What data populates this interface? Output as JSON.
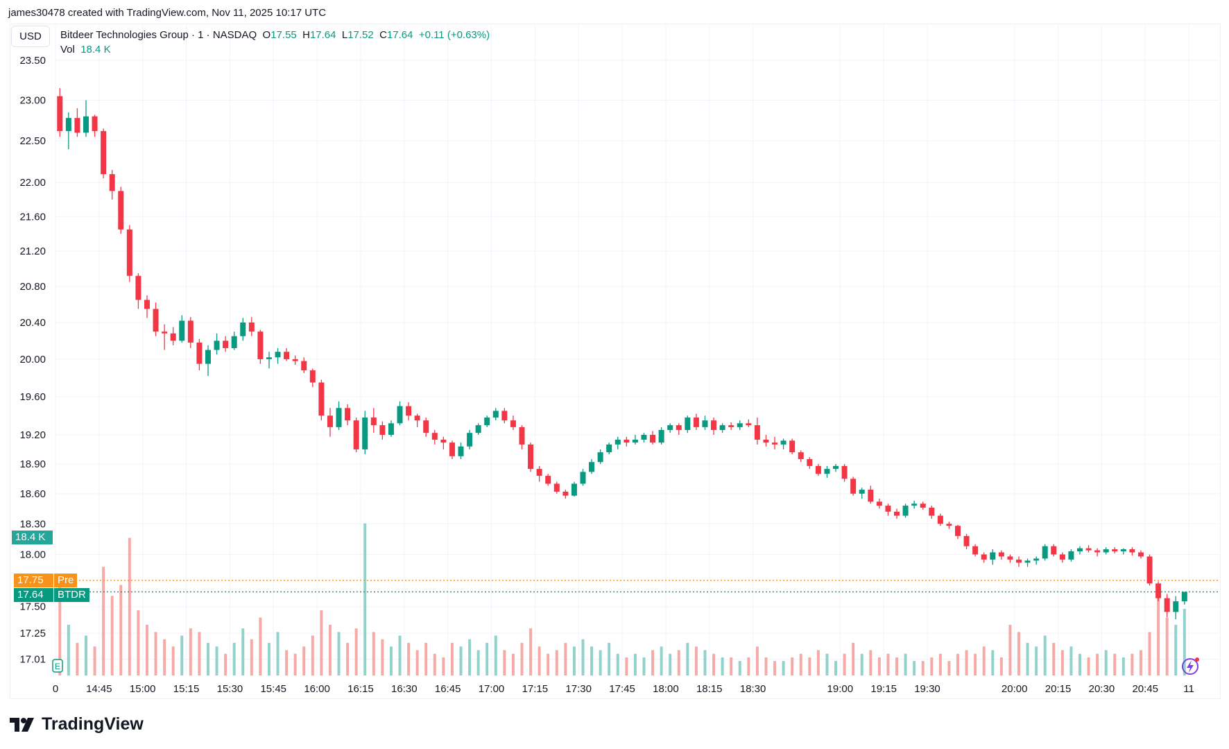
{
  "credit": "james30478 created with TradingView.com, Nov 11, 2025 10:17 UTC",
  "currency": "USD",
  "legend": {
    "symbol": "Bitdeer Technologies Group · 1 · NASDAQ",
    "o_label": "O",
    "o": "17.55",
    "h_label": "H",
    "h": "17.64",
    "l_label": "L",
    "l": "17.52",
    "c_label": "C",
    "c": "17.64",
    "change": "+0.11 (+0.63%)",
    "vol_label": "Vol",
    "vol": "18.4 K"
  },
  "tags": {
    "volume": "18.4 K",
    "pre_price": "17.75",
    "pre_label": "Pre",
    "last_price": "17.64",
    "last_label": "BTDR"
  },
  "colors": {
    "up": "#089981",
    "down": "#f23645",
    "vol_up": "#92d2cc",
    "vol_down": "#f7a9a7",
    "pre": "#f7931a",
    "grid": "#f0f3fa"
  },
  "brand": "TradingView",
  "icons": [
    "earnings-marker-icon",
    "lightning-icon",
    "tradingview-logo-icon"
  ],
  "chart_data": {
    "type": "candlestick",
    "y_scale": "log",
    "ylim": [
      17.01,
      23.5
    ],
    "grid": true,
    "y_ticks": [
      "23.50",
      "23.00",
      "22.50",
      "22.00",
      "21.60",
      "21.20",
      "20.80",
      "20.40",
      "20.00",
      "19.60",
      "19.20",
      "18.90",
      "18.60",
      "18.30",
      "18.00",
      "17.50",
      "17.25",
      "17.01"
    ],
    "x_ticks": [
      [
        "14:30",
        "0"
      ],
      [
        "14:45",
        "14:45"
      ],
      [
        "15:00",
        "15:00"
      ],
      [
        "15:15",
        "15:15"
      ],
      [
        "15:30",
        "15:30"
      ],
      [
        "15:45",
        "15:45"
      ],
      [
        "16:00",
        "16:00"
      ],
      [
        "16:15",
        "16:15"
      ],
      [
        "16:30",
        "16:30"
      ],
      [
        "16:45",
        "16:45"
      ],
      [
        "17:00",
        "17:00"
      ],
      [
        "17:15",
        "17:15"
      ],
      [
        "17:30",
        "17:30"
      ],
      [
        "17:45",
        "17:45"
      ],
      [
        "18:00",
        "18:00"
      ],
      [
        "18:15",
        "18:15"
      ],
      [
        "18:30",
        "18:30"
      ],
      [
        "19:00",
        "19:00"
      ],
      [
        "19:15",
        "19:15"
      ],
      [
        "19:30",
        "19:30"
      ],
      [
        "20:00",
        "20:00"
      ],
      [
        "20:15",
        "20:15"
      ],
      [
        "20:30",
        "20:30"
      ],
      [
        "20:45",
        "20:45"
      ],
      [
        "21:00",
        "11"
      ]
    ],
    "price_lines": [
      {
        "label": "Pre",
        "value": 17.75
      },
      {
        "label": "BTDR",
        "value": 17.64
      }
    ],
    "columns": [
      "time",
      "open",
      "high",
      "low",
      "close",
      "volume_k"
    ],
    "bars": [
      [
        "14:30",
        23.05,
        23.15,
        22.55,
        22.62,
        28
      ],
      [
        "14:33",
        22.62,
        22.85,
        22.4,
        22.78,
        14
      ],
      [
        "14:36",
        22.78,
        22.9,
        22.55,
        22.6,
        9
      ],
      [
        "14:39",
        22.6,
        23.0,
        22.55,
        22.8,
        11
      ],
      [
        "14:42",
        22.8,
        22.82,
        22.55,
        22.62,
        8
      ],
      [
        "14:45",
        22.62,
        22.65,
        22.05,
        22.1,
        30
      ],
      [
        "14:48",
        22.1,
        22.15,
        21.8,
        21.9,
        22
      ],
      [
        "14:51",
        21.9,
        21.95,
        21.4,
        21.45,
        25
      ],
      [
        "14:54",
        21.45,
        21.5,
        20.85,
        20.92,
        38
      ],
      [
        "14:57",
        20.92,
        20.95,
        20.55,
        20.65,
        18
      ],
      [
        "15:00",
        20.65,
        20.7,
        20.45,
        20.55,
        14
      ],
      [
        "15:03",
        20.55,
        20.62,
        20.25,
        20.3,
        12
      ],
      [
        "15:06",
        20.3,
        20.38,
        20.1,
        20.28,
        10
      ],
      [
        "15:09",
        20.28,
        20.35,
        20.15,
        20.2,
        8
      ],
      [
        "15:12",
        20.2,
        20.48,
        20.18,
        20.42,
        11
      ],
      [
        "15:15",
        20.42,
        20.46,
        20.12,
        20.18,
        13
      ],
      [
        "15:18",
        20.18,
        20.22,
        19.88,
        19.95,
        12
      ],
      [
        "15:21",
        19.95,
        20.15,
        19.82,
        20.1,
        9
      ],
      [
        "15:24",
        20.1,
        20.28,
        20.05,
        20.2,
        8
      ],
      [
        "15:27",
        20.2,
        20.25,
        20.08,
        20.12,
        6
      ],
      [
        "15:30",
        20.12,
        20.3,
        20.1,
        20.25,
        9
      ],
      [
        "15:33",
        20.25,
        20.45,
        20.2,
        20.4,
        13
      ],
      [
        "15:36",
        20.4,
        20.46,
        20.25,
        20.3,
        10
      ],
      [
        "15:39",
        20.3,
        20.32,
        19.95,
        20.0,
        16
      ],
      [
        "15:42",
        20.0,
        20.08,
        19.9,
        20.02,
        9
      ],
      [
        "15:45",
        20.02,
        20.12,
        19.95,
        20.08,
        12
      ],
      [
        "15:48",
        20.08,
        20.12,
        19.98,
        20.0,
        7
      ],
      [
        "15:51",
        20.0,
        20.04,
        19.94,
        19.98,
        6
      ],
      [
        "15:54",
        19.98,
        20.02,
        19.85,
        19.88,
        8
      ],
      [
        "15:57",
        19.88,
        19.9,
        19.7,
        19.75,
        11
      ],
      [
        "16:00",
        19.75,
        19.78,
        19.35,
        19.4,
        18
      ],
      [
        "16:03",
        19.4,
        19.48,
        19.18,
        19.28,
        14
      ],
      [
        "16:06",
        19.28,
        19.55,
        19.25,
        19.48,
        12
      ],
      [
        "16:09",
        19.48,
        19.52,
        19.3,
        19.35,
        9
      ],
      [
        "16:12",
        19.35,
        19.38,
        19.02,
        19.05,
        13
      ],
      [
        "16:15",
        19.05,
        19.45,
        19.0,
        19.38,
        42
      ],
      [
        "16:18",
        19.38,
        19.48,
        19.22,
        19.3,
        12
      ],
      [
        "16:21",
        19.3,
        19.34,
        19.15,
        19.2,
        10
      ],
      [
        "16:24",
        19.2,
        19.35,
        19.18,
        19.32,
        8
      ],
      [
        "16:27",
        19.32,
        19.55,
        19.3,
        19.5,
        11
      ],
      [
        "16:30",
        19.5,
        19.54,
        19.35,
        19.4,
        9
      ],
      [
        "16:33",
        19.4,
        19.42,
        19.28,
        19.35,
        7
      ],
      [
        "16:36",
        19.35,
        19.38,
        19.18,
        19.22,
        9
      ],
      [
        "16:39",
        19.22,
        19.25,
        19.1,
        19.15,
        6
      ],
      [
        "16:42",
        19.15,
        19.18,
        19.05,
        19.12,
        5
      ],
      [
        "16:45",
        19.12,
        19.14,
        18.95,
        18.98,
        9
      ],
      [
        "16:48",
        18.98,
        19.12,
        18.95,
        19.08,
        8
      ],
      [
        "16:51",
        19.08,
        19.25,
        19.05,
        19.22,
        10
      ],
      [
        "16:54",
        19.22,
        19.32,
        19.2,
        19.3,
        7
      ],
      [
        "16:57",
        19.3,
        19.4,
        19.28,
        19.38,
        9
      ],
      [
        "17:00",
        19.38,
        19.48,
        19.35,
        19.45,
        11
      ],
      [
        "17:03",
        19.45,
        19.48,
        19.32,
        19.35,
        7
      ],
      [
        "17:06",
        19.35,
        19.4,
        19.25,
        19.28,
        6
      ],
      [
        "17:09",
        19.28,
        19.3,
        19.05,
        19.1,
        9
      ],
      [
        "17:12",
        19.1,
        19.12,
        18.82,
        18.85,
        13
      ],
      [
        "17:15",
        18.85,
        18.88,
        18.72,
        18.78,
        8
      ],
      [
        "17:18",
        18.78,
        18.8,
        18.68,
        18.7,
        6
      ],
      [
        "17:21",
        18.7,
        18.72,
        18.6,
        18.62,
        7
      ],
      [
        "17:24",
        18.62,
        18.64,
        18.55,
        18.58,
        9
      ],
      [
        "17:27",
        18.58,
        18.72,
        18.57,
        18.7,
        8
      ],
      [
        "17:30",
        18.7,
        18.85,
        18.68,
        18.82,
        10
      ],
      [
        "17:33",
        18.82,
        18.95,
        18.8,
        18.92,
        8
      ],
      [
        "17:36",
        18.92,
        19.05,
        18.9,
        19.02,
        7
      ],
      [
        "17:39",
        19.02,
        19.12,
        19.0,
        19.1,
        9
      ],
      [
        "17:42",
        19.1,
        19.18,
        19.05,
        19.15,
        6
      ],
      [
        "17:45",
        19.15,
        19.18,
        19.08,
        19.12,
        5
      ],
      [
        "17:48",
        19.12,
        19.2,
        19.1,
        19.15,
        6
      ],
      [
        "17:51",
        19.15,
        19.22,
        19.12,
        19.2,
        5
      ],
      [
        "17:54",
        19.2,
        19.24,
        19.1,
        19.12,
        7
      ],
      [
        "17:57",
        19.12,
        19.28,
        19.1,
        19.25,
        8
      ],
      [
        "18:00",
        19.25,
        19.32,
        19.22,
        19.3,
        6
      ],
      [
        "18:03",
        19.3,
        19.32,
        19.2,
        19.25,
        7
      ],
      [
        "18:06",
        19.25,
        19.4,
        19.22,
        19.38,
        9
      ],
      [
        "18:09",
        19.38,
        19.42,
        19.25,
        19.28,
        8
      ],
      [
        "18:12",
        19.28,
        19.4,
        19.25,
        19.35,
        7
      ],
      [
        "18:15",
        19.35,
        19.38,
        19.2,
        19.25,
        6
      ],
      [
        "18:18",
        19.25,
        19.32,
        19.22,
        19.3,
        5
      ],
      [
        "18:21",
        19.3,
        19.33,
        19.25,
        19.28,
        5
      ],
      [
        "18:24",
        19.28,
        19.35,
        19.25,
        19.32,
        4
      ],
      [
        "18:27",
        19.32,
        19.36,
        19.28,
        19.3,
        5
      ],
      [
        "18:30",
        19.3,
        19.38,
        19.1,
        19.15,
        8
      ],
      [
        "18:33",
        19.15,
        19.2,
        19.08,
        19.12,
        5
      ],
      [
        "18:36",
        19.12,
        19.18,
        19.05,
        19.1,
        4
      ],
      [
        "18:39",
        19.1,
        19.16,
        19.05,
        19.14,
        4
      ],
      [
        "18:42",
        19.14,
        19.16,
        19.0,
        19.02,
        5
      ],
      [
        "18:45",
        19.02,
        19.04,
        18.92,
        18.95,
        6
      ],
      [
        "18:48",
        18.95,
        18.97,
        18.85,
        18.88,
        5
      ],
      [
        "18:51",
        18.88,
        18.9,
        18.78,
        18.8,
        7
      ],
      [
        "18:54",
        18.8,
        18.88,
        18.76,
        18.85,
        6
      ],
      [
        "18:57",
        18.85,
        18.9,
        18.82,
        18.88,
        4
      ],
      [
        "19:00",
        18.88,
        18.9,
        18.72,
        18.75,
        6
      ],
      [
        "19:03",
        18.75,
        18.77,
        18.58,
        18.6,
        9
      ],
      [
        "19:06",
        18.6,
        18.66,
        18.55,
        18.64,
        6
      ],
      [
        "19:09",
        18.64,
        18.68,
        18.5,
        18.52,
        7
      ],
      [
        "19:12",
        18.52,
        18.55,
        18.45,
        18.48,
        5
      ],
      [
        "19:15",
        18.48,
        18.5,
        18.38,
        18.42,
        6
      ],
      [
        "19:18",
        18.42,
        18.45,
        18.35,
        18.38,
        5
      ],
      [
        "19:21",
        18.38,
        18.5,
        18.36,
        18.48,
        6
      ],
      [
        "19:24",
        18.48,
        18.53,
        18.45,
        18.5,
        4
      ],
      [
        "19:27",
        18.5,
        18.52,
        18.44,
        18.46,
        4
      ],
      [
        "19:30",
        18.46,
        18.48,
        18.35,
        18.38,
        5
      ],
      [
        "19:33",
        18.38,
        18.4,
        18.28,
        18.3,
        6
      ],
      [
        "19:36",
        18.3,
        18.32,
        18.25,
        18.28,
        4
      ],
      [
        "19:39",
        18.28,
        18.29,
        18.15,
        18.18,
        6
      ],
      [
        "19:42",
        18.18,
        18.2,
        18.05,
        18.08,
        7
      ],
      [
        "19:45",
        18.08,
        18.1,
        17.98,
        18.0,
        6
      ],
      [
        "19:48",
        18.0,
        18.02,
        17.92,
        17.95,
        8
      ],
      [
        "19:51",
        17.95,
        18.05,
        17.9,
        18.02,
        7
      ],
      [
        "19:54",
        18.02,
        18.04,
        17.95,
        17.98,
        5
      ],
      [
        "19:57",
        17.98,
        18.0,
        17.92,
        17.95,
        14
      ],
      [
        "20:00",
        17.95,
        17.98,
        17.88,
        17.92,
        12
      ],
      [
        "20:03",
        17.92,
        17.96,
        17.88,
        17.94,
        9
      ],
      [
        "20:06",
        17.94,
        17.98,
        17.9,
        17.96,
        8
      ],
      [
        "20:09",
        17.96,
        18.1,
        17.94,
        18.08,
        11
      ],
      [
        "20:12",
        18.08,
        18.1,
        17.98,
        18.0,
        9
      ],
      [
        "20:15",
        18.0,
        18.02,
        17.92,
        17.95,
        7
      ],
      [
        "20:18",
        17.95,
        18.05,
        17.93,
        18.03,
        8
      ],
      [
        "20:21",
        18.03,
        18.08,
        18.0,
        18.06,
        6
      ],
      [
        "20:24",
        18.06,
        18.09,
        18.02,
        18.04,
        5
      ],
      [
        "20:27",
        18.04,
        18.06,
        17.98,
        18.02,
        6
      ],
      [
        "20:30",
        18.02,
        18.07,
        18.0,
        18.05,
        7
      ],
      [
        "20:33",
        18.05,
        18.07,
        18.01,
        18.03,
        6
      ],
      [
        "20:36",
        18.03,
        18.06,
        18.0,
        18.05,
        5
      ],
      [
        "20:39",
        18.05,
        18.07,
        17.99,
        18.02,
        6
      ],
      [
        "20:42",
        18.02,
        18.04,
        17.96,
        17.98,
        7
      ],
      [
        "20:45",
        17.98,
        18.0,
        17.7,
        17.72,
        12
      ],
      [
        "20:48",
        17.72,
        17.74,
        17.55,
        17.58,
        22
      ],
      [
        "20:51",
        17.58,
        17.62,
        17.4,
        17.45,
        16
      ],
      [
        "20:54",
        17.45,
        17.6,
        17.38,
        17.55,
        14
      ],
      [
        "20:57",
        17.55,
        17.64,
        17.52,
        17.64,
        18.4
      ]
    ]
  }
}
